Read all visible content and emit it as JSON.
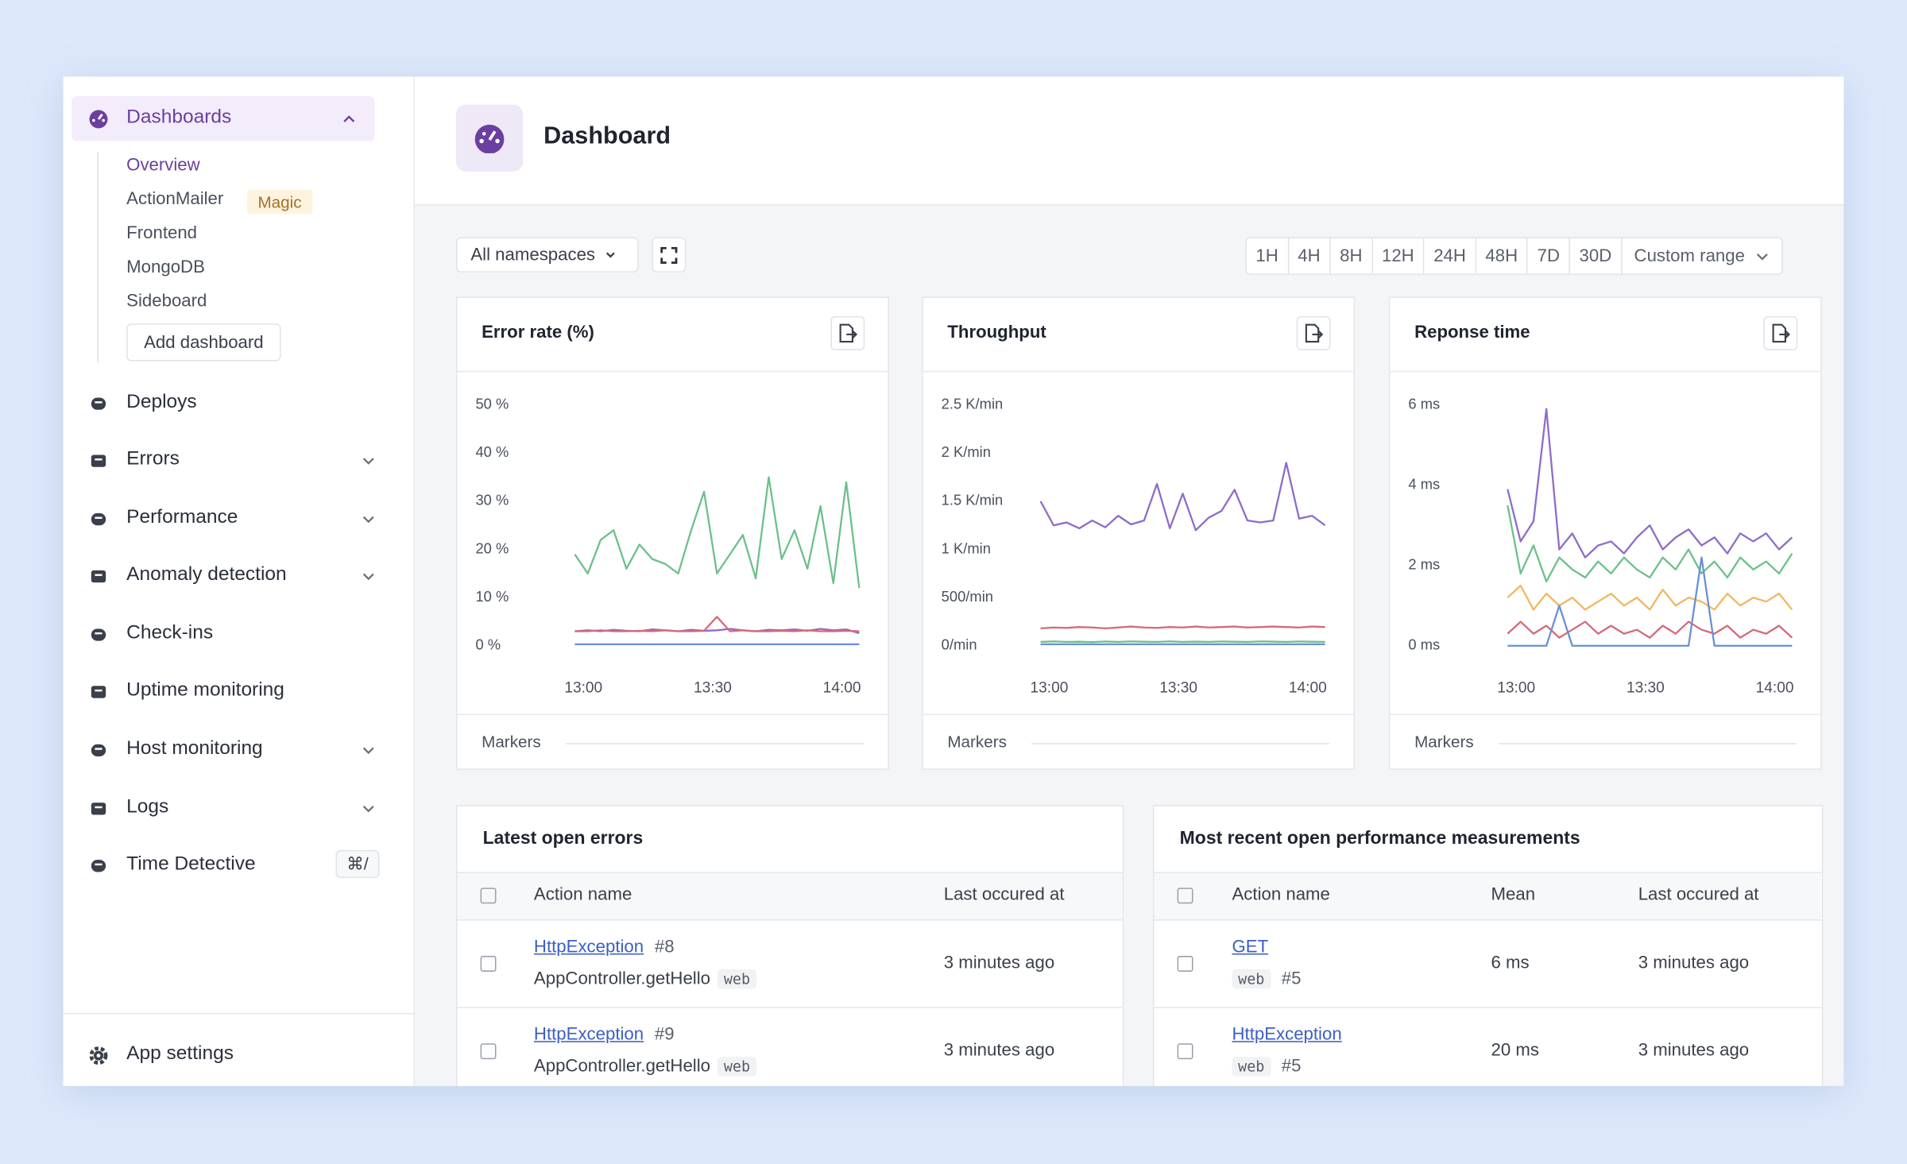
{
  "sidebar": {
    "dashboards": {
      "label": "Dashboards",
      "items": [
        "Overview",
        "ActionMailer",
        "Frontend",
        "MongoDB",
        "Sideboard"
      ],
      "badge": "Magic",
      "add": "Add dashboard"
    },
    "nav": [
      "Deploys",
      "Errors",
      "Performance",
      "Anomaly detection",
      "Check-ins",
      "Uptime monitoring",
      "Host monitoring",
      "Logs",
      "Time Detective"
    ],
    "shortcut": "⌘/",
    "settings": "App settings"
  },
  "header": {
    "title": "Dashboard"
  },
  "toolbar": {
    "namespace": "All namespaces",
    "ranges": [
      "1H",
      "4H",
      "8H",
      "12H",
      "24H",
      "48H",
      "7D",
      "30D"
    ],
    "custom": "Custom range"
  },
  "chart_data": [
    {
      "type": "line",
      "title": "Error rate (%)",
      "markers_label": "Markers",
      "x": [
        -2,
        1,
        4,
        7,
        10,
        13,
        16,
        19,
        22,
        25,
        28,
        31,
        34,
        37,
        40,
        43,
        46,
        49,
        52,
        55,
        58,
        61,
        64
      ],
      "xlim": [
        -5,
        65
      ],
      "xticks": [
        {
          "value": 0,
          "label": "13:00"
        },
        {
          "value": 30,
          "label": "13:30"
        },
        {
          "value": 60,
          "label": "14:00"
        }
      ],
      "ylim": [
        0,
        50
      ],
      "yticks": [
        {
          "value": 0,
          "label": "0 %"
        },
        {
          "value": 10,
          "label": "10 %"
        },
        {
          "value": 20,
          "label": "20 %"
        },
        {
          "value": 30,
          "label": "30 %"
        },
        {
          "value": 40,
          "label": "40 %"
        },
        {
          "value": 50,
          "label": "50 %"
        }
      ],
      "series": [
        {
          "color": "#6cc08b",
          "values": [
            19,
            15,
            22,
            24,
            16,
            21,
            18,
            17,
            15,
            24,
            32,
            15,
            19,
            23,
            14,
            35,
            18,
            24,
            16,
            29,
            13,
            34,
            12
          ]
        },
        {
          "color": "#8e6cc9",
          "values": [
            3,
            3.2,
            3,
            3.3,
            3.1,
            3,
            3.4,
            3.2,
            3,
            3.3,
            3.1,
            3.2,
            3.5,
            3.2,
            3,
            3.3,
            3.2,
            3.4,
            3.1,
            3.5,
            3.2,
            3.4,
            2.6
          ]
        },
        {
          "color": "#d46a7a",
          "values": [
            3,
            3,
            3.2,
            3,
            3,
            3.1,
            3,
            3.2,
            3,
            3,
            3.1,
            6,
            3,
            3.2,
            3,
            3,
            3.1,
            3,
            3.2,
            3,
            3,
            3.1,
            3
          ]
        },
        {
          "color": "#6a8fd8",
          "values": [
            0.3,
            0.3,
            0.3,
            0.3,
            0.3,
            0.3,
            0.3,
            0.3,
            0.3,
            0.3,
            0.3,
            0.3,
            0.3,
            0.3,
            0.3,
            0.3,
            0.3,
            0.3,
            0.3,
            0.3,
            0.3,
            0.3,
            0.3
          ]
        }
      ]
    },
    {
      "type": "line",
      "title": "Throughput",
      "markers_label": "Markers",
      "x": [
        -2,
        1,
        4,
        7,
        10,
        13,
        16,
        19,
        22,
        25,
        28,
        31,
        34,
        37,
        40,
        43,
        46,
        49,
        52,
        55,
        58,
        61,
        64
      ],
      "xlim": [
        -5,
        65
      ],
      "xticks": [
        {
          "value": 0,
          "label": "13:00"
        },
        {
          "value": 30,
          "label": "13:30"
        },
        {
          "value": 60,
          "label": "14:00"
        }
      ],
      "ylim": [
        0,
        2500
      ],
      "yticks": [
        {
          "value": 0,
          "label": "0/min"
        },
        {
          "value": 500,
          "label": "500/min"
        },
        {
          "value": 1000,
          "label": "1 K/min"
        },
        {
          "value": 1500,
          "label": "1.5 K/min"
        },
        {
          "value": 2000,
          "label": "2 K/min"
        },
        {
          "value": 2500,
          "label": "2.5 K/min"
        }
      ],
      "series": [
        {
          "color": "#8e6cc9",
          "values": [
            1500,
            1250,
            1280,
            1220,
            1300,
            1230,
            1350,
            1260,
            1300,
            1680,
            1220,
            1580,
            1200,
            1330,
            1400,
            1620,
            1300,
            1280,
            1300,
            1900,
            1320,
            1350,
            1250
          ]
        },
        {
          "color": "#d46a7a",
          "values": [
            180,
            190,
            185,
            195,
            190,
            180,
            190,
            200,
            190,
            185,
            195,
            190,
            200,
            190,
            195,
            200,
            190,
            195,
            200,
            195,
            190,
            200,
            195
          ]
        },
        {
          "color": "#6cc08b",
          "values": [
            40,
            45,
            40,
            42,
            38,
            44,
            40,
            46,
            42,
            40,
            45,
            41,
            43,
            40,
            44,
            42,
            40,
            45,
            43,
            41,
            44,
            42,
            40
          ]
        },
        {
          "color": "#6a8fd8",
          "values": [
            15,
            15,
            15,
            15,
            15,
            15,
            15,
            15,
            15,
            15,
            15,
            15,
            15,
            15,
            15,
            15,
            15,
            15,
            15,
            15,
            15,
            15,
            15
          ]
        }
      ]
    },
    {
      "type": "line",
      "title": "Reponse time",
      "markers_label": "Markers",
      "x": [
        -2,
        1,
        4,
        7,
        10,
        13,
        16,
        19,
        22,
        25,
        28,
        31,
        34,
        37,
        40,
        43,
        46,
        49,
        52,
        55,
        58,
        61,
        64
      ],
      "xlim": [
        -5,
        65
      ],
      "xticks": [
        {
          "value": 0,
          "label": "13:00"
        },
        {
          "value": 30,
          "label": "13:30"
        },
        {
          "value": 60,
          "label": "14:00"
        }
      ],
      "ylim": [
        0,
        6
      ],
      "yticks": [
        {
          "value": 0,
          "label": "0 ms"
        },
        {
          "value": 2,
          "label": "2 ms"
        },
        {
          "value": 4,
          "label": "4 ms"
        },
        {
          "value": 6,
          "label": "6 ms"
        }
      ],
      "series": [
        {
          "color": "#8e6cc9",
          "values": [
            3.9,
            2.6,
            3.1,
            5.9,
            2.4,
            2.8,
            2.2,
            2.5,
            2.6,
            2.3,
            2.7,
            3.0,
            2.4,
            2.7,
            2.9,
            2.5,
            2.7,
            2.3,
            2.8,
            2.6,
            2.8,
            2.4,
            2.7
          ]
        },
        {
          "color": "#6cc08b",
          "values": [
            3.5,
            1.8,
            2.5,
            1.6,
            2.2,
            1.9,
            1.7,
            2.1,
            1.8,
            2.2,
            1.9,
            1.7,
            2.2,
            1.9,
            2.4,
            1.8,
            2.1,
            1.7,
            2.2,
            1.9,
            2.1,
            1.8,
            2.3
          ]
        },
        {
          "color": "#f0b860",
          "values": [
            1.2,
            1.5,
            0.9,
            1.3,
            1.0,
            1.2,
            0.9,
            1.1,
            1.3,
            1.0,
            1.2,
            0.9,
            1.4,
            1.0,
            1.2,
            1.1,
            0.9,
            1.3,
            1.0,
            1.2,
            1.1,
            1.3,
            0.9
          ]
        },
        {
          "color": "#d46a7a",
          "values": [
            0.3,
            0.6,
            0.3,
            0.5,
            0.2,
            0.4,
            0.6,
            0.3,
            0.5,
            0.3,
            0.4,
            0.2,
            0.5,
            0.3,
            0.6,
            0.4,
            0.3,
            0.5,
            0.2,
            0.4,
            0.3,
            0.5,
            0.2
          ]
        },
        {
          "color": "#6a8fd8",
          "values": [
            0,
            0,
            0,
            0,
            1.0,
            0,
            0,
            0,
            0,
            0,
            0,
            0,
            0,
            0,
            0,
            2.2,
            0,
            0,
            0,
            0,
            0,
            0,
            0
          ]
        }
      ]
    }
  ],
  "tables": [
    {
      "title": "Latest open errors",
      "columns": [
        "Action name",
        "Last occured at"
      ],
      "rows": [
        {
          "link": "HttpException",
          "number": "#8",
          "action": "AppController.getHello",
          "tag": "web",
          "time": "3 minutes ago"
        },
        {
          "link": "HttpException",
          "number": "#9",
          "action": "AppController.getHello",
          "tag": "web",
          "time": "3 minutes ago"
        }
      ]
    },
    {
      "title": "Most recent open performance measurements",
      "columns": [
        "Action name",
        "Mean",
        "Last occured at"
      ],
      "rows": [
        {
          "link": "GET",
          "tag": "web",
          "number": "#5",
          "mean": "6 ms",
          "time": "3 minutes ago"
        },
        {
          "link": "HttpException",
          "tag": "web",
          "number": "#5",
          "mean": "20 ms",
          "time": "3 minutes ago"
        }
      ]
    }
  ]
}
